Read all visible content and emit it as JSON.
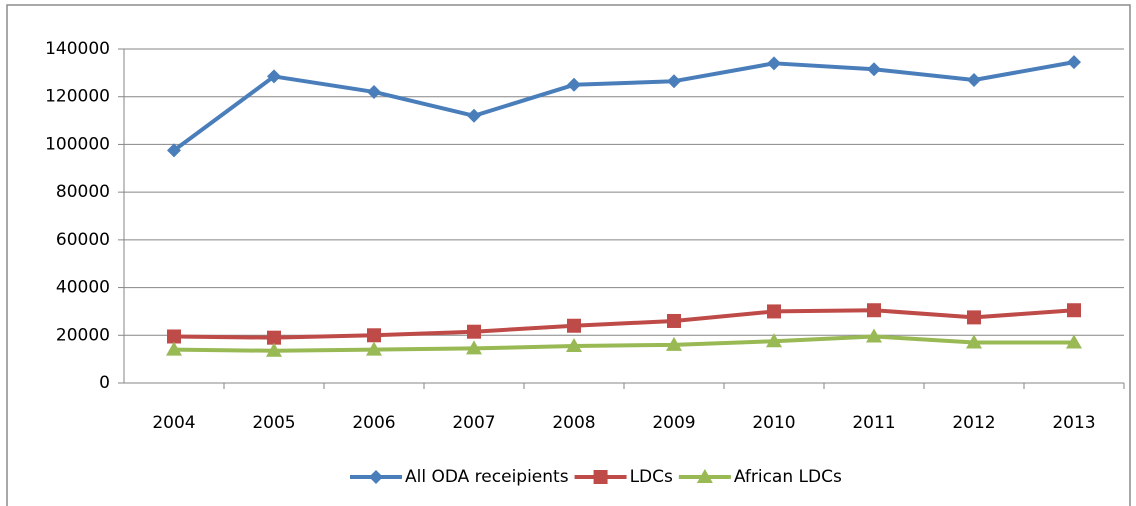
{
  "chart_data": {
    "type": "line",
    "categories": [
      "2004",
      "2005",
      "2006",
      "2007",
      "2008",
      "2009",
      "2010",
      "2011",
      "2012",
      "2013"
    ],
    "series": [
      {
        "name": "All ODA receipients",
        "color": "#4a7ebb",
        "marker": "diamond",
        "values": [
          97500,
          128500,
          122000,
          112000,
          125000,
          126500,
          134000,
          131500,
          127000,
          134500
        ]
      },
      {
        "name": "LDCs",
        "color": "#be4b48",
        "marker": "square",
        "values": [
          19500,
          19000,
          20000,
          21500,
          24000,
          26000,
          30000,
          30500,
          27500,
          30500
        ]
      },
      {
        "name": "African LDCs",
        "color": "#98b954",
        "marker": "triangle",
        "values": [
          14000,
          13500,
          14000,
          14500,
          15500,
          16000,
          17500,
          19500,
          17000,
          17000
        ]
      }
    ],
    "ylim": [
      0,
      140000
    ],
    "yticks": [
      0,
      20000,
      40000,
      60000,
      80000,
      100000,
      120000,
      140000
    ],
    "grid": true,
    "legend": "bottom"
  }
}
